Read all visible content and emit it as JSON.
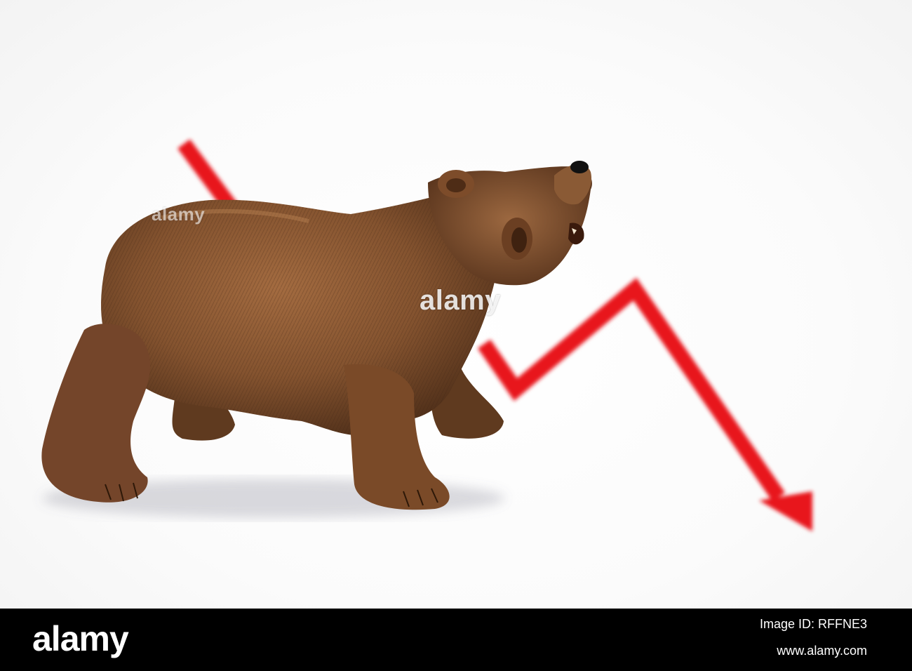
{
  "photo": {
    "subject": "bear-figurine",
    "arrow_color": "#e8191c",
    "bear_color": "#8a5a35"
  },
  "watermark": {
    "center_text": "alamy",
    "side_text": "alamy"
  },
  "footer": {
    "brand": "alamy",
    "image_id": "Image ID: RFFNE3",
    "site": "www.alamy.com"
  }
}
